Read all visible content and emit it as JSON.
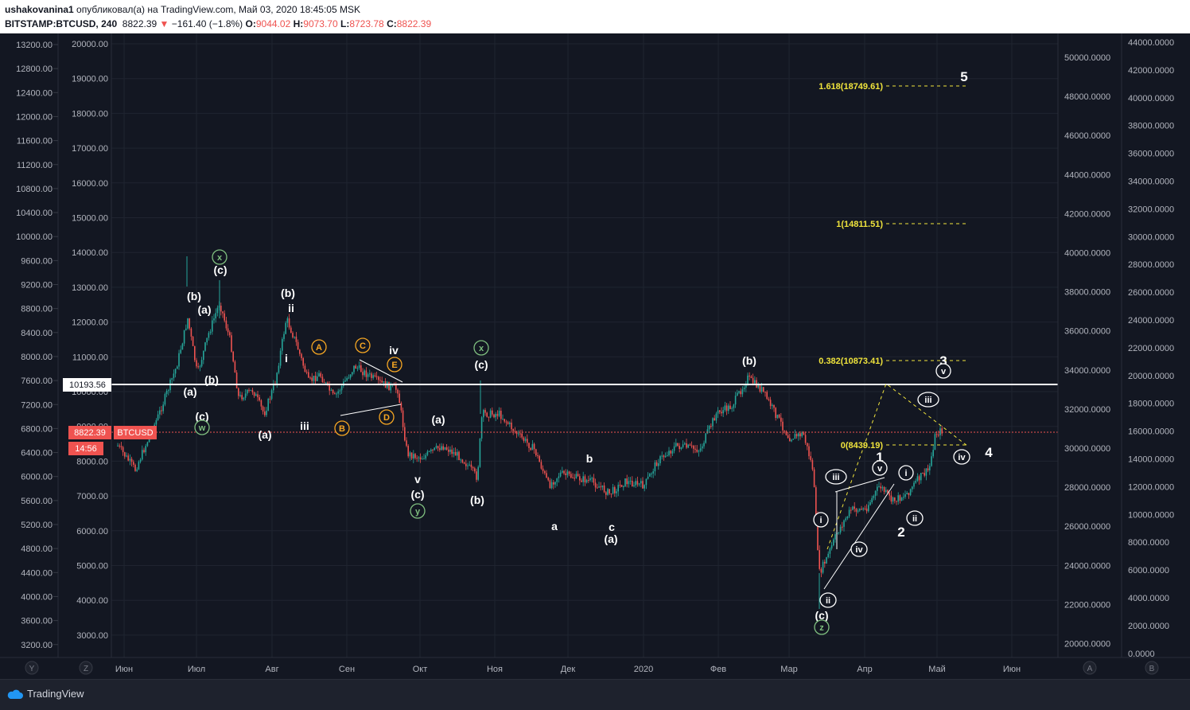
{
  "header": {
    "author": "ushakovanina1",
    "published_text": "опубликовал(а) на TradingView.com, Май 03, 2020 18:45:05 MSK",
    "symbol": "BITSTAMP:BTCUSD, 240",
    "price": "8822.39",
    "change": "−161.40 (−1.8%)",
    "o_label": "O:",
    "o_value": "9044.02",
    "h_label": "H:",
    "h_value": "9073.70",
    "l_label": "L:",
    "l_value": "8723.78",
    "c_label": "C:",
    "c_value": "8822.39"
  },
  "left_scale1": {
    "ticks": [
      "13200.00",
      "12800.00",
      "12400.00",
      "12000.00",
      "11600.00",
      "11200.00",
      "10800.00",
      "10400.00",
      "10000.00",
      "9600.00",
      "9200.00",
      "8800.00",
      "8400.00",
      "8000.00",
      "7600.00",
      "7200.00",
      "6800.00",
      "6400.00",
      "6000.00",
      "5600.00",
      "5200.00",
      "4800.00",
      "4400.00",
      "4000.00",
      "3600.00",
      "3200.00"
    ]
  },
  "left_scale2": {
    "ticks": [
      "20000.00",
      "19000.00",
      "18000.00",
      "17000.00",
      "16000.00",
      "15000.00",
      "14000.00",
      "13000.00",
      "12000.00",
      "11000.00",
      "10000.00",
      "9000.00",
      "8000.00",
      "7000.00",
      "6000.00",
      "5000.00",
      "4000.00",
      "3000.00"
    ]
  },
  "right_scale1": {
    "ticks": [
      "50000.0000",
      "48000.0000",
      "46000.0000",
      "44000.0000",
      "42000.0000",
      "40000.0000",
      "38000.0000",
      "36000.0000",
      "34000.0000",
      "32000.0000",
      "30000.0000",
      "28000.0000",
      "26000.0000",
      "24000.0000",
      "22000.0000",
      "20000.0000"
    ]
  },
  "right_scale2": {
    "ticks": [
      "44000.0000",
      "42000.0000",
      "40000.0000",
      "38000.0000",
      "36000.0000",
      "34000.0000",
      "32000.0000",
      "30000.0000",
      "28000.0000",
      "26000.0000",
      "24000.0000",
      "22000.0000",
      "20000.0000",
      "18000.0000",
      "16000.0000",
      "14000.0000",
      "12000.0000",
      "10000.0000",
      "8000.0000",
      "6000.0000",
      "4000.0000",
      "2000.0000",
      "0.0000"
    ]
  },
  "time_axis": {
    "labels": [
      "Июн",
      "Июл",
      "Авг",
      "Сен",
      "Окт",
      "Ноя",
      "Дек",
      "2020",
      "Фев",
      "Мар",
      "Апр",
      "Май",
      "Июн"
    ],
    "left_buttons": [
      "Y",
      "Z"
    ],
    "right_buttons": [
      "A",
      "B"
    ]
  },
  "price_tags": {
    "level_line": "10193.56",
    "current_price": "8822.39",
    "symbol_tag": "BTCUSD",
    "countdown": "14:56"
  },
  "fib_levels": [
    {
      "label": "1.618(18749.61)"
    },
    {
      "label": "1(14811.51)"
    },
    {
      "label": "0.382(10873.41)"
    },
    {
      "label": "0(8439.19)"
    }
  ],
  "wave_labels": [
    "(b)",
    "(a)",
    "(b)",
    "(a)",
    "(c)",
    "(c)",
    "(a)",
    "(b)",
    "ii",
    "i",
    "iii",
    "iv",
    "(c)",
    "v",
    "(c)",
    "(a)",
    "(b)",
    "b",
    "a",
    "c",
    "(a)",
    "(b)",
    "(c)",
    "1",
    "2",
    "3",
    "4",
    "5"
  ],
  "circled_labels": [
    "x",
    "w",
    "A",
    "B",
    "C",
    "D",
    "E",
    "x",
    "y",
    "z",
    "i",
    "ii",
    "iii",
    "iv",
    "v",
    "i",
    "ii",
    "iii",
    "iv",
    "v"
  ],
  "colors": {
    "background": "#131722",
    "grid": "#2a2e39",
    "up_candle": "#26a69a",
    "down_candle": "#ef5350",
    "fib": "#f0e43c",
    "orange_labels": "#f5a623",
    "green_circles": "#7fbf7f",
    "price_tag": "#ef5350"
  },
  "footer": {
    "brand": "TradingView"
  }
}
